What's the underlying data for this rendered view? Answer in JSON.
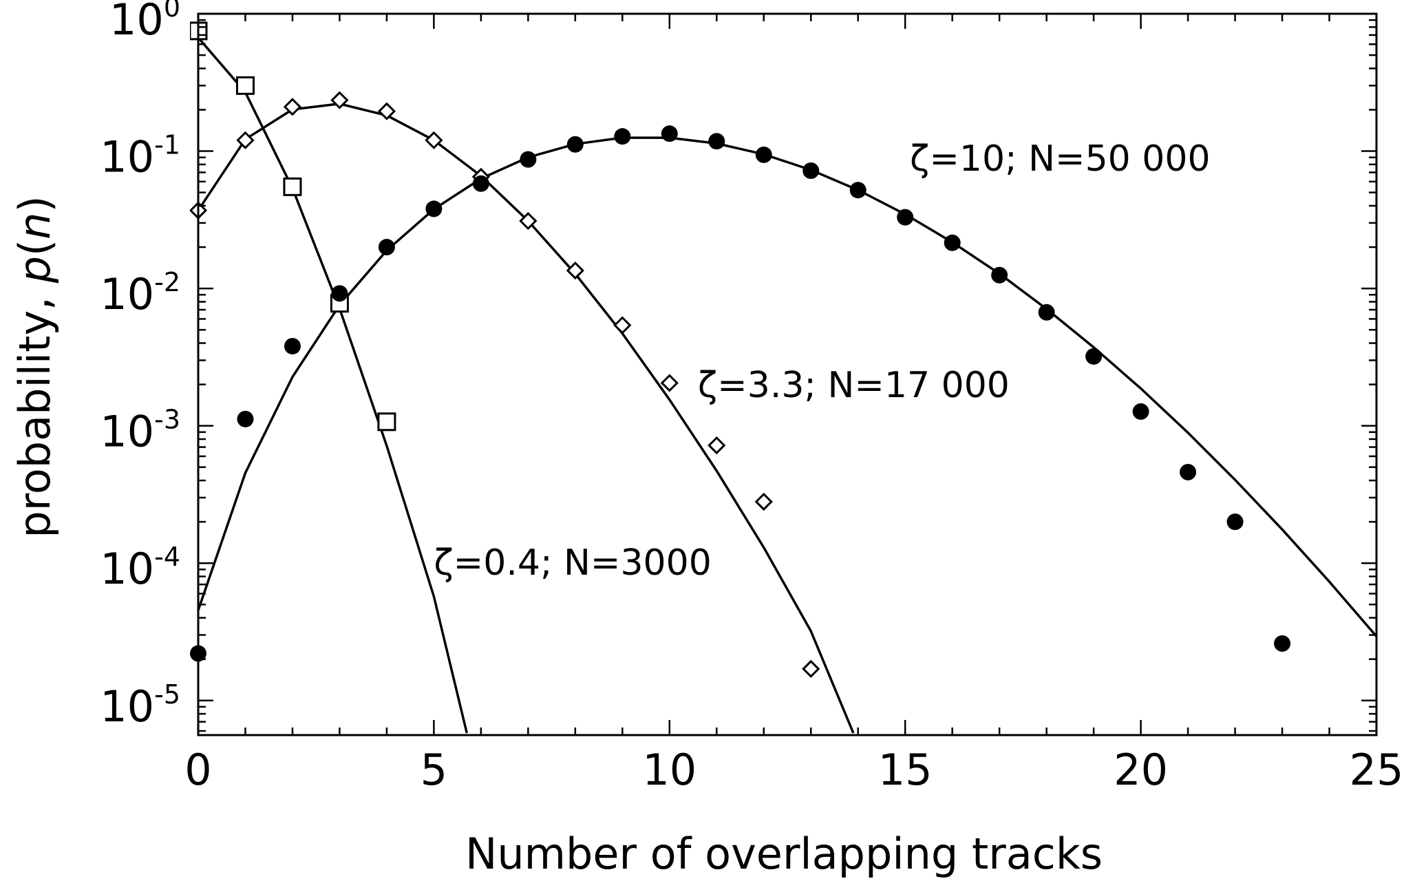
{
  "chart_data": {
    "type": "scatter",
    "xlabel": "Number of overlapping tracks",
    "ylabel_prefix": "probability, ",
    "ylabel_italic": "p",
    "ylabel_paren_open": "(",
    "ylabel_paren_var": "n",
    "ylabel_paren_close": ")",
    "xlim": [
      0,
      25
    ],
    "ylim": [
      5.6e-06,
      1
    ],
    "yscale": "log",
    "x_ticks": [
      0,
      5,
      10,
      15,
      20,
      25
    ],
    "x_tick_labels": [
      "0",
      "5",
      "10",
      "15",
      "20",
      "25"
    ],
    "y_ticks": [
      1,
      0.1,
      0.01,
      0.001,
      0.0001,
      1e-05
    ],
    "y_tick_bases": [
      "10",
      "10",
      "10",
      "10",
      "10",
      "10"
    ],
    "y_tick_exponents": [
      "0",
      "-1",
      "-2",
      "-3",
      "-4",
      "-5"
    ],
    "grid": false,
    "series": [
      {
        "name": "ζ=0.4; N=3000",
        "marker": "square",
        "points": [
          [
            0,
            0.75
          ],
          [
            1,
            0.3
          ],
          [
            2,
            0.055
          ],
          [
            3,
            0.0078
          ],
          [
            4,
            0.00107
          ]
        ],
        "curve": [
          [
            0,
            0.67
          ],
          [
            1,
            0.268
          ],
          [
            2,
            0.0536
          ],
          [
            3,
            0.00715
          ],
          [
            4,
            0.000715
          ],
          [
            5,
            5.72e-05
          ],
          [
            5.7,
            5.8e-06
          ]
        ]
      },
      {
        "name": "ζ=3.3; N=17 000",
        "marker": "diamond",
        "points": [
          [
            0,
            0.037
          ],
          [
            1,
            0.12
          ],
          [
            2,
            0.21
          ],
          [
            3,
            0.235
          ],
          [
            4,
            0.195
          ],
          [
            5,
            0.12
          ],
          [
            6,
            0.065
          ],
          [
            7,
            0.031
          ],
          [
            8,
            0.0135
          ],
          [
            9,
            0.0054
          ],
          [
            10,
            0.00205
          ],
          [
            11,
            0.00072
          ],
          [
            12,
            0.00028
          ],
          [
            13,
            1.7e-05
          ]
        ],
        "curve": [
          [
            0,
            0.037
          ],
          [
            1,
            0.122
          ],
          [
            2,
            0.201
          ],
          [
            3,
            0.221
          ],
          [
            4,
            0.182
          ],
          [
            5,
            0.12
          ],
          [
            6,
            0.066
          ],
          [
            7,
            0.031
          ],
          [
            8,
            0.0128
          ],
          [
            9,
            0.0047
          ],
          [
            10,
            0.00155
          ],
          [
            11,
            0.00047
          ],
          [
            12,
            0.00013
          ],
          [
            13,
            3.2e-05
          ],
          [
            13.9,
            5.8e-06
          ]
        ]
      },
      {
        "name": "ζ=10; N=50 000",
        "marker": "filled-circle",
        "points": [
          [
            0,
            2.2e-05
          ],
          [
            1,
            0.00112
          ],
          [
            2,
            0.0038
          ],
          [
            3,
            0.0092
          ],
          [
            4,
            0.02
          ],
          [
            5,
            0.038
          ],
          [
            6,
            0.058
          ],
          [
            7,
            0.087
          ],
          [
            8,
            0.112
          ],
          [
            9,
            0.128
          ],
          [
            10,
            0.134
          ],
          [
            11,
            0.118
          ],
          [
            12,
            0.094
          ],
          [
            13,
            0.072
          ],
          [
            14,
            0.052
          ],
          [
            15,
            0.033
          ],
          [
            16,
            0.0215
          ],
          [
            17,
            0.0125
          ],
          [
            18,
            0.0067
          ],
          [
            19,
            0.0032
          ],
          [
            20,
            0.00127
          ],
          [
            21,
            0.00046
          ],
          [
            22,
            0.0002
          ],
          [
            23,
            2.6e-05
          ]
        ],
        "curve": [
          [
            0,
            4.54e-05
          ],
          [
            1,
            0.000454
          ],
          [
            2,
            0.00227
          ],
          [
            3,
            0.00757
          ],
          [
            4,
            0.0189
          ],
          [
            5,
            0.0378
          ],
          [
            6,
            0.0631
          ],
          [
            7,
            0.0901
          ],
          [
            8,
            0.1126
          ],
          [
            9,
            0.1251
          ],
          [
            10,
            0.1251
          ],
          [
            11,
            0.1137
          ],
          [
            12,
            0.0948
          ],
          [
            13,
            0.0729
          ],
          [
            14,
            0.0521
          ],
          [
            15,
            0.0347
          ],
          [
            16,
            0.0217
          ],
          [
            17,
            0.0128
          ],
          [
            18,
            0.00709
          ],
          [
            19,
            0.00373
          ],
          [
            20,
            0.00187
          ],
          [
            21,
            0.00089
          ],
          [
            22,
            0.000404
          ],
          [
            23,
            0.000176
          ],
          [
            24,
            7.33e-05
          ],
          [
            25,
            2.93e-05
          ]
        ]
      }
    ],
    "annotations": [
      {
        "text": "ζ=10; N=50 000",
        "x": 15.1,
        "y": 0.072
      },
      {
        "text": "ζ=3.3; N=17 000",
        "x": 10.6,
        "y": 0.00162
      },
      {
        "text": "ζ=0.4; N=3000",
        "x": 5.0,
        "y": 8.25e-05
      }
    ]
  }
}
